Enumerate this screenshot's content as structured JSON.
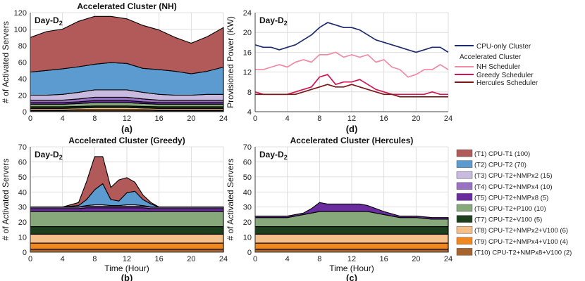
{
  "legend_power": {
    "cpu_only": "CPU-only Cluster",
    "group_title": "Accelerated Cluster",
    "nh": "NH Scheduler",
    "greedy": "Greedy Scheduler",
    "hercules": "Hercules Scheduler"
  },
  "legend_tiers": [
    {
      "label": "(T1) CPU-T1 (100)",
      "color": "#b25a5a"
    },
    {
      "label": "(T2) CPU-T2 (70)",
      "color": "#5b9bd0"
    },
    {
      "label": "(T3) CPU-T2+NMPx2 (15)",
      "color": "#c9badf"
    },
    {
      "label": "(T4) CPU-T2+NMPx4 (10)",
      "color": "#9a72c4"
    },
    {
      "label": "(T5) CPU-T2+NMPx8 (5)",
      "color": "#6a2c9f"
    },
    {
      "label": "(T6) CPU-T2+P100 (10)",
      "color": "#86a87a"
    },
    {
      "label": "(T7) CPU-T2+V100 (5)",
      "color": "#1c3f1c"
    },
    {
      "label": "(T8) CPU-T2+NMPx2+V100 (6)",
      "color": "#f6c08a"
    },
    {
      "label": "(T9) CPU-T2+NMPx4+V100 (4)",
      "color": "#f0871f"
    },
    {
      "label": "(T10) CPU-T2+NMPx8+V100 (2)",
      "color": "#a8622c"
    }
  ],
  "chart_data": [
    {
      "id": "a",
      "type": "area",
      "title": "Accelerated Cluster (NH)",
      "tag": "Day-D2",
      "panel_label": "(a)",
      "xlabel": "",
      "ylabel": "# of Activated Servers",
      "xlim": [
        0,
        24
      ],
      "ylim": [
        0,
        120
      ],
      "xticks": [
        0,
        4,
        8,
        12,
        16,
        20,
        24
      ],
      "yticks": [
        0,
        20,
        40,
        60,
        80,
        100,
        120
      ],
      "x": [
        0,
        2,
        4,
        6,
        8,
        10,
        12,
        14,
        16,
        18,
        20,
        22,
        24
      ],
      "stacked_series": [
        {
          "name": "T10",
          "values": [
            1,
            1,
            1,
            1,
            1,
            1,
            1,
            1,
            1,
            1,
            1,
            1,
            1
          ]
        },
        {
          "name": "T9",
          "values": [
            1,
            1,
            1,
            1.5,
            1.5,
            1.5,
            1.5,
            1.5,
            1,
            1,
            1,
            1,
            1
          ]
        },
        {
          "name": "T8",
          "values": [
            2,
            2,
            2,
            2,
            2.5,
            2.5,
            2.5,
            2,
            2,
            2,
            2,
            2,
            2
          ]
        },
        {
          "name": "T7",
          "values": [
            2,
            2,
            2,
            2,
            2,
            2,
            2,
            2,
            2,
            2,
            2,
            2,
            2
          ]
        },
        {
          "name": "T6",
          "values": [
            3,
            3,
            3,
            3.5,
            4,
            4,
            4,
            3.5,
            3,
            3,
            3,
            3,
            3
          ]
        },
        {
          "name": "T5",
          "values": [
            2,
            2,
            2,
            2,
            2.5,
            2.5,
            2.5,
            2,
            2,
            2,
            2,
            2,
            2
          ]
        },
        {
          "name": "T4",
          "values": [
            3,
            3,
            3,
            3.5,
            4,
            4,
            4,
            3.5,
            3,
            3,
            3,
            3,
            3
          ]
        },
        {
          "name": "T3",
          "values": [
            6,
            6,
            7,
            8,
            9,
            9,
            9,
            8,
            7,
            6,
            6,
            7,
            7
          ]
        },
        {
          "name": "T2",
          "values": [
            28,
            30,
            31,
            31,
            31,
            33,
            32,
            29,
            30,
            29,
            26,
            28,
            33
          ]
        },
        {
          "name": "T1",
          "values": [
            42,
            47,
            48,
            55,
            58,
            56,
            54,
            52,
            48,
            41,
            37,
            42,
            48
          ]
        }
      ]
    },
    {
      "id": "b",
      "type": "area",
      "title": "Accelerated Cluster (Greedy)",
      "tag": "Day-D2",
      "panel_label": "(b)",
      "xlabel": "Time (Hour)",
      "ylabel": "# of Activated Servers",
      "xlim": [
        0,
        24
      ],
      "ylim": [
        0,
        70
      ],
      "xticks": [
        0,
        4,
        8,
        12,
        16,
        20,
        24
      ],
      "yticks": [
        0,
        10,
        20,
        30,
        40,
        50,
        60,
        70
      ],
      "x": [
        0,
        2,
        4,
        6,
        7,
        8,
        9,
        10,
        11,
        12,
        13,
        14,
        15,
        16,
        18,
        20,
        22,
        24
      ],
      "stacked_series": [
        {
          "name": "T10",
          "values": [
            2,
            2,
            2,
            2,
            2,
            2,
            2,
            2,
            2,
            2,
            2,
            2,
            2,
            2,
            2,
            2,
            2,
            2
          ]
        },
        {
          "name": "T9",
          "values": [
            4,
            4,
            4,
            4,
            4,
            4,
            4,
            4,
            4,
            4,
            4,
            4,
            4,
            4,
            4,
            4,
            4,
            4
          ]
        },
        {
          "name": "T8",
          "values": [
            6,
            6,
            6,
            6,
            6,
            6,
            6,
            6,
            6,
            6,
            6,
            6,
            6,
            6,
            6,
            6,
            6,
            6
          ]
        },
        {
          "name": "T7",
          "values": [
            5,
            5,
            5,
            5,
            5,
            5,
            5,
            5,
            5,
            5,
            5,
            5,
            5,
            5,
            5,
            5,
            5,
            5
          ]
        },
        {
          "name": "T6",
          "values": [
            10,
            10,
            10,
            10,
            10,
            10,
            10,
            10,
            10,
            10,
            10,
            10,
            10,
            10,
            10,
            10,
            10,
            10
          ]
        },
        {
          "name": "T5",
          "values": [
            2,
            2,
            2,
            2,
            2.5,
            2.5,
            2.5,
            2.5,
            2.5,
            2.5,
            2.5,
            2.5,
            2,
            2,
            2,
            2,
            2,
            2
          ]
        },
        {
          "name": "T4",
          "values": [
            1,
            1,
            1,
            1,
            1,
            1,
            1,
            1,
            1,
            1,
            1,
            1,
            1,
            1,
            1,
            1,
            1,
            1
          ]
        },
        {
          "name": "T3",
          "values": [
            0,
            0,
            0,
            0,
            0.5,
            1,
            1,
            0.5,
            0.5,
            1,
            1,
            0.5,
            0,
            0,
            0,
            0,
            0,
            0
          ]
        },
        {
          "name": "T2",
          "values": [
            0,
            0,
            0,
            1,
            4,
            10,
            14,
            4,
            3,
            8,
            9,
            4,
            2,
            0,
            0,
            0,
            0,
            0
          ]
        },
        {
          "name": "T1",
          "values": [
            0,
            0,
            0,
            2,
            12,
            22,
            18,
            8,
            14,
            10,
            6,
            3,
            1,
            0,
            0,
            0,
            0,
            0
          ]
        }
      ]
    },
    {
      "id": "c",
      "type": "area",
      "title": "Accelerated Cluster (Hercules)",
      "tag": "Day-D2",
      "panel_label": "(c)",
      "xlabel": "Time (Hour)",
      "ylabel": "# of Activated Servers",
      "xlim": [
        0,
        24
      ],
      "ylim": [
        0,
        70
      ],
      "xticks": [
        0,
        4,
        8,
        12,
        16,
        20,
        24
      ],
      "yticks": [
        0,
        10,
        20,
        30,
        40,
        50,
        60,
        70
      ],
      "x": [
        0,
        2,
        4,
        6,
        7,
        8,
        9,
        10,
        11,
        12,
        13,
        14,
        16,
        18,
        20,
        22,
        24
      ],
      "stacked_series": [
        {
          "name": "T10",
          "values": [
            2,
            2,
            2,
            2,
            2,
            2,
            2,
            2,
            2,
            2,
            2,
            2,
            2,
            2,
            2,
            2,
            2
          ]
        },
        {
          "name": "T9",
          "values": [
            4,
            4,
            4,
            4,
            4,
            4,
            4,
            4,
            4,
            4,
            4,
            4,
            4,
            4,
            4,
            4,
            4
          ]
        },
        {
          "name": "T8",
          "values": [
            6,
            6,
            6,
            6,
            6,
            6,
            6,
            6,
            6,
            6,
            6,
            6,
            6,
            6,
            6,
            6,
            6
          ]
        },
        {
          "name": "T7",
          "values": [
            5,
            5,
            5,
            5,
            5,
            5,
            5,
            5,
            5,
            5,
            5,
            5,
            5,
            5,
            5,
            5,
            5
          ]
        },
        {
          "name": "T6",
          "values": [
            6,
            6,
            6,
            8,
            9,
            10,
            10,
            10,
            10,
            10,
            10,
            10,
            8,
            6,
            6,
            5,
            5
          ]
        },
        {
          "name": "T5",
          "values": [
            1,
            1,
            1,
            1,
            3,
            6,
            5,
            5,
            5,
            5,
            5,
            4,
            2,
            1,
            1,
            1,
            1
          ]
        }
      ]
    },
    {
      "id": "d",
      "type": "line",
      "title": "",
      "tag": "Day-D2",
      "panel_label": "(d)",
      "xlabel": "",
      "ylabel": "Provisioned Power (KW)",
      "xlim": [
        0,
        24
      ],
      "ylim": [
        4,
        24
      ],
      "xticks": [
        0,
        4,
        8,
        12,
        16,
        20,
        24
      ],
      "yticks": [
        4,
        8,
        12,
        16,
        20,
        24
      ],
      "x": [
        0,
        1,
        2,
        3,
        4,
        5,
        6,
        7,
        8,
        9,
        10,
        11,
        12,
        13,
        14,
        15,
        16,
        17,
        18,
        19,
        20,
        21,
        22,
        23,
        24
      ],
      "series": [
        {
          "name": "CPU-only Cluster",
          "color": "#1c2a6e",
          "values": [
            17.5,
            17,
            17,
            16.5,
            17,
            17.5,
            18.5,
            19.5,
            21,
            22,
            21.5,
            21,
            21,
            20.5,
            19.5,
            18.5,
            18,
            17.5,
            17,
            16.5,
            16,
            16.5,
            17,
            17,
            16
          ]
        },
        {
          "name": "NH Scheduler",
          "color": "#f08ca4",
          "values": [
            12.5,
            12.5,
            13,
            13.5,
            13,
            14,
            14.5,
            14,
            15.5,
            15.5,
            16,
            15,
            15.5,
            15,
            15.5,
            14,
            14.5,
            13,
            12.5,
            11,
            11.5,
            12.5,
            12.5,
            13.5,
            12.5
          ]
        },
        {
          "name": "Greedy Scheduler",
          "color": "#d31452",
          "values": [
            8,
            7.5,
            7.5,
            7.5,
            7.5,
            8,
            8.5,
            9,
            11,
            11.5,
            9.5,
            10,
            10,
            10.5,
            9.5,
            8.5,
            8,
            7.5,
            7.5,
            7.5,
            7.5,
            7.5,
            8,
            7.5,
            7.5
          ]
        },
        {
          "name": "Hercules Scheduler",
          "color": "#7a1616",
          "values": [
            7.5,
            7.5,
            7.5,
            7.5,
            7.5,
            7.5,
            8,
            8.5,
            9,
            9.5,
            9,
            9,
            9.5,
            9,
            8.5,
            8,
            7.5,
            7.5,
            7,
            7,
            7,
            7,
            7,
            7,
            7
          ]
        }
      ]
    }
  ]
}
